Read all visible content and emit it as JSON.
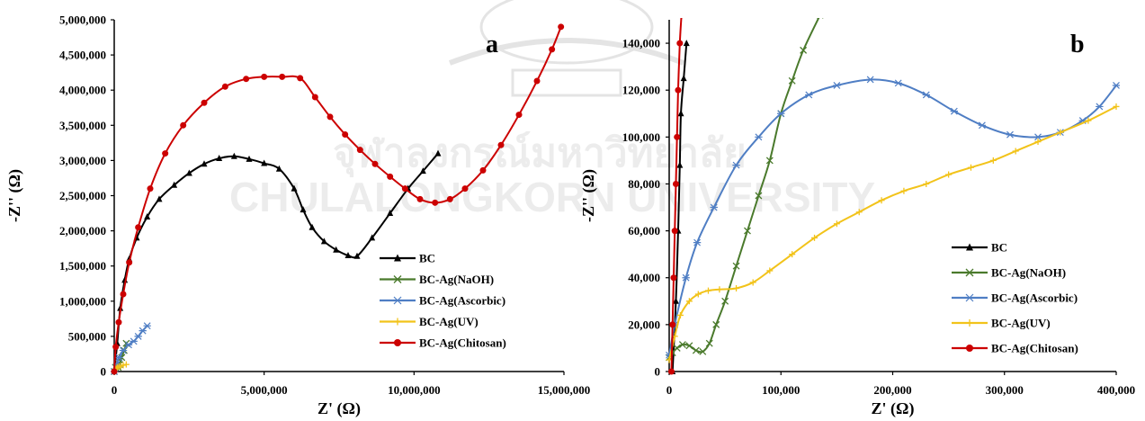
{
  "watermark": {
    "thai_text": "จุฬาลงกรณ์มหาวิทยาลัย",
    "english_text": "CHULALONGKORN UNIVERSITY"
  },
  "colors": {
    "BC": "#000000",
    "BC-Ag(NaOH)": "#4a7a2c",
    "BC-Ag(Ascorbic)": "#4f7ec4",
    "BC-Ag(UV)": "#f2c31a",
    "BC-Ag(Chitosan)": "#cc0000"
  },
  "chart_data": [
    {
      "type": "scatter",
      "panel_label": "a",
      "xlabel": "Z' (Ω)",
      "ylabel": "-Z'' (Ω)",
      "xlim": [
        0,
        15000000
      ],
      "ylim": [
        0,
        5000000
      ],
      "x_ticks": [
        0,
        5000000,
        10000000,
        15000000
      ],
      "x_tick_labels": [
        "0",
        "5,000,000",
        "10,000,000",
        "15,000,000"
      ],
      "y_ticks": [
        0,
        500000,
        1000000,
        1500000,
        2000000,
        2500000,
        3000000,
        3500000,
        4000000,
        4500000,
        5000000
      ],
      "y_tick_labels": [
        "0",
        "500,000",
        "1,000,000",
        "1,500,000",
        "2,000,000",
        "2,500,000",
        "3,000,000",
        "3,500,000",
        "4,000,000",
        "4,500,000",
        "5,000,000"
      ],
      "legend_position": "bottom-right",
      "series": [
        {
          "name": "BC",
          "marker": "triangle",
          "points": [
            [
              0,
              0
            ],
            [
              100000,
              400000
            ],
            [
              200000,
              900000
            ],
            [
              350000,
              1300000
            ],
            [
              500000,
              1600000
            ],
            [
              750000,
              1900000
            ],
            [
              1100000,
              2200000
            ],
            [
              1500000,
              2450000
            ],
            [
              2000000,
              2650000
            ],
            [
              2500000,
              2820000
            ],
            [
              3000000,
              2950000
            ],
            [
              3500000,
              3030000
            ],
            [
              4000000,
              3060000
            ],
            [
              4500000,
              3020000
            ],
            [
              5000000,
              2960000
            ],
            [
              5500000,
              2880000
            ],
            [
              6000000,
              2600000
            ],
            [
              6300000,
              2300000
            ],
            [
              6600000,
              2050000
            ],
            [
              7000000,
              1850000
            ],
            [
              7400000,
              1730000
            ],
            [
              7800000,
              1650000
            ],
            [
              8100000,
              1640000
            ],
            [
              8600000,
              1900000
            ],
            [
              9200000,
              2250000
            ],
            [
              9800000,
              2600000
            ],
            [
              10300000,
              2850000
            ],
            [
              10800000,
              3100000
            ]
          ]
        },
        {
          "name": "BC-Ag(NaOH)",
          "marker": "x",
          "points": [
            [
              0,
              0
            ],
            [
              40000,
              60000
            ],
            [
              80000,
              90000
            ],
            [
              130000,
              60000
            ],
            [
              180000,
              100000
            ],
            [
              250000,
              200000
            ],
            [
              330000,
              300000
            ],
            [
              400000,
              400000
            ]
          ]
        },
        {
          "name": "BC-Ag(Ascorbic)",
          "marker": "asterisk",
          "points": [
            [
              0,
              0
            ],
            [
              80000,
              100000
            ],
            [
              160000,
              200000
            ],
            [
              300000,
              300000
            ],
            [
              480000,
              380000
            ],
            [
              650000,
              430000
            ],
            [
              800000,
              500000
            ],
            [
              950000,
              580000
            ],
            [
              1100000,
              650000
            ]
          ]
        },
        {
          "name": "BC-Ag(UV)",
          "marker": "plus",
          "points": [
            [
              0,
              0
            ],
            [
              50000,
              40000
            ],
            [
              100000,
              60000
            ],
            [
              160000,
              70000
            ],
            [
              220000,
              80000
            ],
            [
              300000,
              90000
            ],
            [
              400000,
              100000
            ]
          ]
        },
        {
          "name": "BC-Ag(Chitosan)",
          "marker": "circle",
          "points": [
            [
              0,
              0
            ],
            [
              50000,
              350000
            ],
            [
              150000,
              700000
            ],
            [
              300000,
              1100000
            ],
            [
              500000,
              1550000
            ],
            [
              800000,
              2050000
            ],
            [
              1200000,
              2600000
            ],
            [
              1700000,
              3100000
            ],
            [
              2300000,
              3500000
            ],
            [
              3000000,
              3820000
            ],
            [
              3700000,
              4050000
            ],
            [
              4400000,
              4160000
            ],
            [
              5000000,
              4190000
            ],
            [
              5600000,
              4190000
            ],
            [
              6200000,
              4170000
            ],
            [
              6700000,
              3900000
            ],
            [
              7200000,
              3620000
            ],
            [
              7700000,
              3370000
            ],
            [
              8200000,
              3150000
            ],
            [
              8700000,
              2950000
            ],
            [
              9200000,
              2770000
            ],
            [
              9700000,
              2600000
            ],
            [
              10200000,
              2450000
            ],
            [
              10700000,
              2400000
            ],
            [
              11200000,
              2450000
            ],
            [
              11700000,
              2600000
            ],
            [
              12300000,
              2860000
            ],
            [
              12900000,
              3220000
            ],
            [
              13500000,
              3650000
            ],
            [
              14100000,
              4130000
            ],
            [
              14600000,
              4580000
            ],
            [
              14900000,
              4900000
            ]
          ]
        }
      ]
    },
    {
      "type": "scatter",
      "panel_label": "b",
      "xlabel": "Z' (Ω)",
      "ylabel": "-Z'' (Ω)",
      "xlim": [
        0,
        400000
      ],
      "ylim": [
        0,
        150000
      ],
      "x_ticks": [
        0,
        100000,
        200000,
        300000,
        400000
      ],
      "x_tick_labels": [
        "0",
        "100,000",
        "200,000",
        "300,000",
        "400,000"
      ],
      "y_ticks": [
        0,
        20000,
        40000,
        60000,
        80000,
        100000,
        120000,
        140000
      ],
      "y_tick_labels": [
        "0",
        "20,000",
        "40,000",
        "60,000",
        "80,000",
        "100,000",
        "120,000",
        "140,000"
      ],
      "legend_position": "bottom-right",
      "series": [
        {
          "name": "BC",
          "marker": "triangle",
          "points": [
            [
              3000,
              0
            ],
            [
              6000,
              30000
            ],
            [
              8000,
              60000
            ],
            [
              9500,
              88000
            ],
            [
              10500,
              110000
            ],
            [
              13000,
              125000
            ],
            [
              15500,
              140000
            ]
          ]
        },
        {
          "name": "BC-Ag(NaOH)",
          "marker": "x",
          "points": [
            [
              0,
              6000
            ],
            [
              3000,
              8000
            ],
            [
              7000,
              10000
            ],
            [
              12000,
              11500
            ],
            [
              18000,
              11000
            ],
            [
              24000,
              9000
            ],
            [
              30000,
              8500
            ],
            [
              36000,
              12000
            ],
            [
              42000,
              20000
            ],
            [
              50000,
              30000
            ],
            [
              60000,
              45000
            ],
            [
              70000,
              60000
            ],
            [
              80000,
              75000
            ],
            [
              90000,
              90000
            ],
            [
              100000,
              110000
            ],
            [
              110000,
              124000
            ],
            [
              120000,
              137000
            ],
            [
              135000,
              152000
            ]
          ]
        },
        {
          "name": "BC-Ag(Ascorbic)",
          "marker": "asterisk",
          "points": [
            [
              0,
              7000
            ],
            [
              5000,
              20000
            ],
            [
              15000,
              40000
            ],
            [
              25000,
              55000
            ],
            [
              40000,
              70000
            ],
            [
              60000,
              88000
            ],
            [
              80000,
              100000
            ],
            [
              100000,
              110000
            ],
            [
              125000,
              118000
            ],
            [
              150000,
              122000
            ],
            [
              180000,
              124500
            ],
            [
              205000,
              123000
            ],
            [
              230000,
              118000
            ],
            [
              255000,
              111000
            ],
            [
              280000,
              105000
            ],
            [
              305000,
              101000
            ],
            [
              330000,
              100000
            ],
            [
              350000,
              102000
            ],
            [
              370000,
              107000
            ],
            [
              385000,
              113000
            ],
            [
              400000,
              122000
            ]
          ]
        },
        {
          "name": "BC-Ag(UV)",
          "marker": "plus",
          "points": [
            [
              0,
              5000
            ],
            [
              5000,
              15000
            ],
            [
              10000,
              24000
            ],
            [
              18000,
              30000
            ],
            [
              26000,
              33000
            ],
            [
              35000,
              34500
            ],
            [
              45000,
              35000
            ],
            [
              60000,
              35500
            ],
            [
              75000,
              38000
            ],
            [
              90000,
              43000
            ],
            [
              110000,
              50000
            ],
            [
              130000,
              57000
            ],
            [
              150000,
              63000
            ],
            [
              170000,
              68000
            ],
            [
              190000,
              73000
            ],
            [
              210000,
              77000
            ],
            [
              230000,
              80000
            ],
            [
              250000,
              84000
            ],
            [
              270000,
              87000
            ],
            [
              290000,
              90000
            ],
            [
              310000,
              94000
            ],
            [
              330000,
              98000
            ],
            [
              350000,
              102000
            ],
            [
              375000,
              107000
            ],
            [
              400000,
              113000
            ]
          ]
        },
        {
          "name": "BC-Ag(Chitosan)",
          "marker": "circle",
          "points": [
            [
              2000,
              0
            ],
            [
              3000,
              20000
            ],
            [
              4000,
              40000
            ],
            [
              5000,
              60000
            ],
            [
              6000,
              80000
            ],
            [
              7000,
              100000
            ],
            [
              8000,
              120000
            ],
            [
              9500,
              140000
            ],
            [
              11000,
              152000
            ]
          ]
        }
      ]
    }
  ]
}
